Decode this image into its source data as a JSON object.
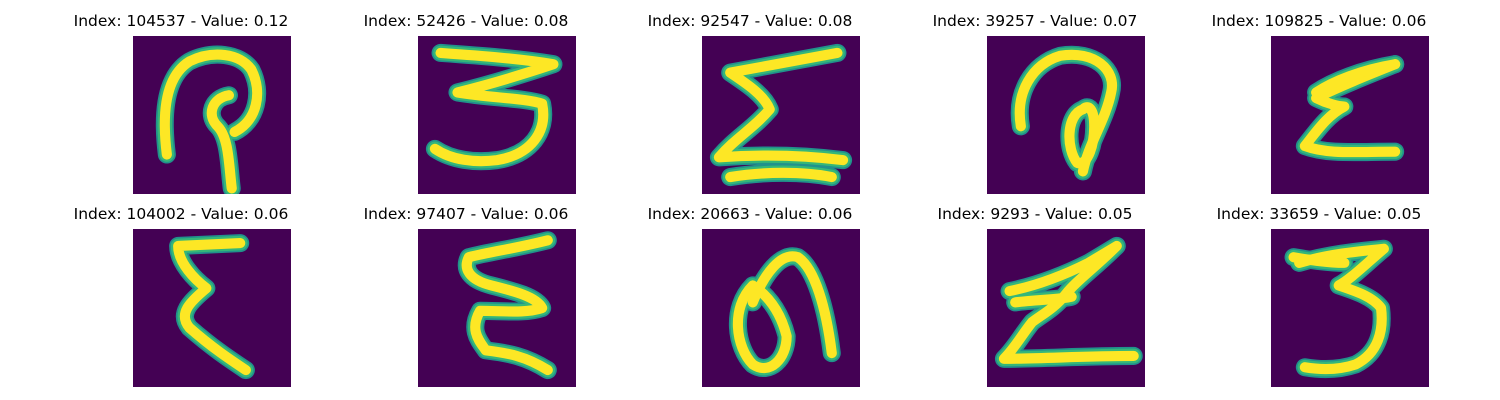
{
  "figure": {
    "background_color": "#440154",
    "stroke_core_color": "#fde725",
    "stroke_mid_color": "#35b779",
    "stroke_edge_color": "#21918c",
    "panels": [
      {
        "index": "104537",
        "value": "0.12",
        "title": "Index: 104537 - Value: 0.12",
        "glyph": "handwritten-hook-figure"
      },
      {
        "index": "52426",
        "value": "0.08",
        "title": "Index: 52426 - Value: 0.08",
        "glyph": "handwritten-3"
      },
      {
        "index": "92547",
        "value": "0.08",
        "title": "Index: 92547 - Value: 0.08",
        "glyph": "handwritten-sigma"
      },
      {
        "index": "39257",
        "value": "0.07",
        "title": "Index: 39257 - Value: 0.07",
        "glyph": "handwritten-loop-figure"
      },
      {
        "index": "109825",
        "value": "0.06",
        "title": "Index: 109825 - Value: 0.06",
        "glyph": "handwritten-epsilon-z"
      },
      {
        "index": "104002",
        "value": "0.06",
        "title": "Index: 104002 - Value: 0.06",
        "glyph": "handwritten-sigma-narrow"
      },
      {
        "index": "97407",
        "value": "0.06",
        "title": "Index: 97407 - Value: 0.06",
        "glyph": "handwritten-zigzag"
      },
      {
        "index": "20663",
        "value": "0.06",
        "title": "Index: 20663 - Value: 0.06",
        "glyph": "handwritten-arch-blob"
      },
      {
        "index": "9293",
        "value": "0.05",
        "title": "Index: 9293 - Value: 0.05",
        "glyph": "handwritten-z"
      },
      {
        "index": "33659",
        "value": "0.05",
        "title": "Index: 33659 - Value: 0.05",
        "glyph": "handwritten-3-alt"
      }
    ]
  }
}
